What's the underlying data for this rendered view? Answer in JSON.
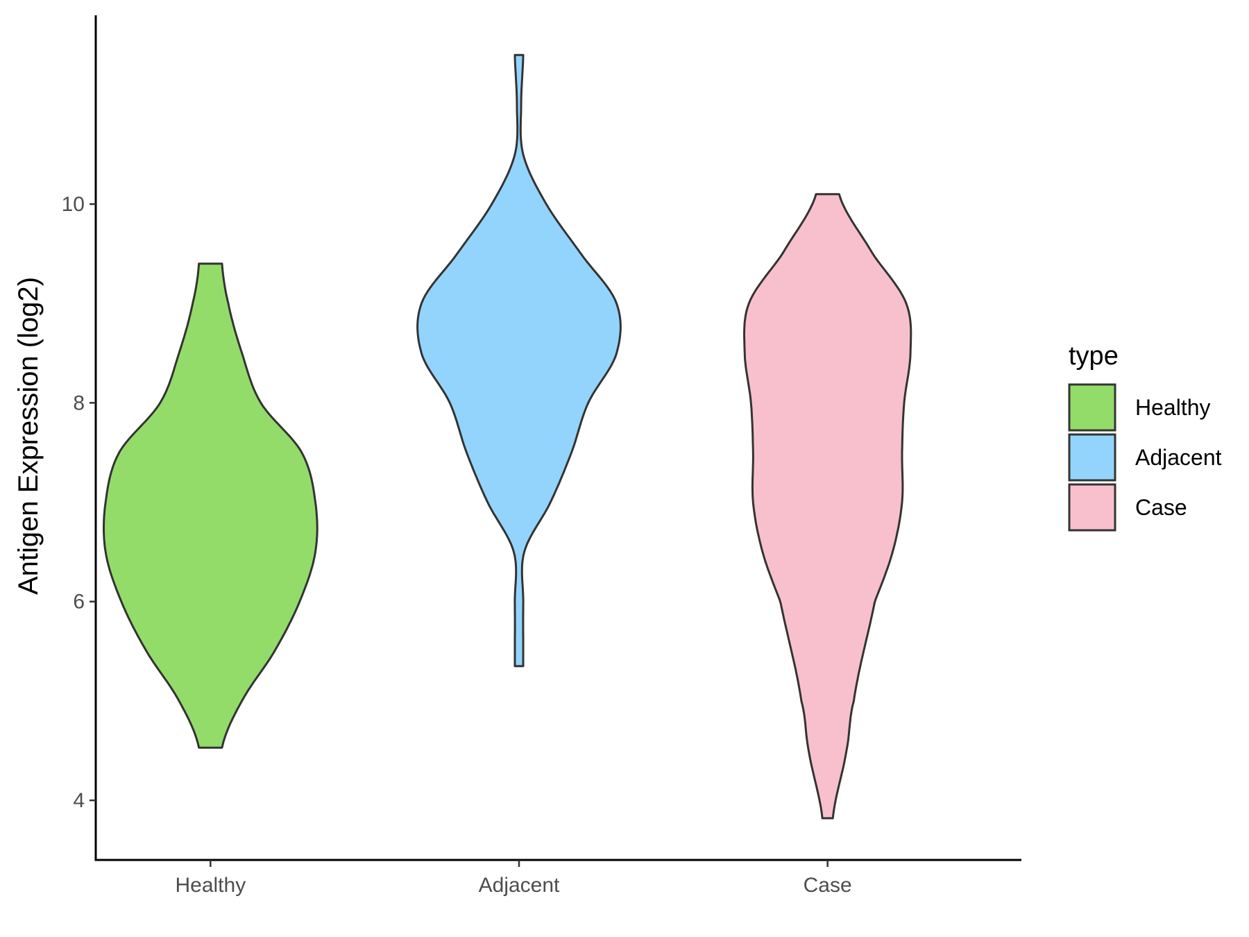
{
  "chart_data": {
    "type": "violin",
    "title": "",
    "xlabel": "",
    "ylabel": "Antigen Expression (log2)",
    "categories": [
      "Healthy",
      "Adjacent",
      "Case"
    ],
    "ylim": [
      3.4,
      11.9
    ],
    "yticks": [
      4,
      6,
      8,
      10
    ],
    "grid": false,
    "legend": {
      "title": "type",
      "position": "right",
      "entries": [
        "Healthy",
        "Adjacent",
        "Case"
      ]
    },
    "series": [
      {
        "category": "Healthy",
        "color": "#93dc6a",
        "min": 4.53,
        "max": 9.4,
        "density": [
          [
            4.53,
            0.11
          ],
          [
            5.0,
            0.3
          ],
          [
            5.5,
            0.61
          ],
          [
            6.0,
            0.85
          ],
          [
            6.5,
            1.0
          ],
          [
            7.0,
            1.0
          ],
          [
            7.5,
            0.87
          ],
          [
            8.0,
            0.48
          ],
          [
            8.5,
            0.3
          ],
          [
            9.0,
            0.17
          ],
          [
            9.4,
            0.11
          ]
        ]
      },
      {
        "category": "Adjacent",
        "color": "#93d4fc",
        "min": 5.35,
        "max": 11.5,
        "density": [
          [
            5.35,
            0.04
          ],
          [
            6.0,
            0.04
          ],
          [
            6.5,
            0.05
          ],
          [
            7.0,
            0.3
          ],
          [
            7.5,
            0.5
          ],
          [
            8.0,
            0.66
          ],
          [
            8.5,
            0.93
          ],
          [
            9.0,
            0.93
          ],
          [
            9.5,
            0.59
          ],
          [
            10.0,
            0.26
          ],
          [
            10.5,
            0.04
          ],
          [
            11.0,
            0.02
          ],
          [
            11.5,
            0.04
          ]
        ]
      },
      {
        "category": "Case",
        "color": "#f8c0cc",
        "min": 3.82,
        "max": 10.1,
        "density": [
          [
            3.82,
            0.05
          ],
          [
            4.5,
            0.18
          ],
          [
            5.0,
            0.25
          ],
          [
            6.0,
            0.45
          ],
          [
            6.5,
            0.62
          ],
          [
            7.0,
            0.71
          ],
          [
            7.5,
            0.71
          ],
          [
            8.0,
            0.73
          ],
          [
            8.5,
            0.79
          ],
          [
            9.0,
            0.75
          ],
          [
            9.5,
            0.43
          ],
          [
            10.1,
            0.11
          ]
        ]
      }
    ]
  }
}
